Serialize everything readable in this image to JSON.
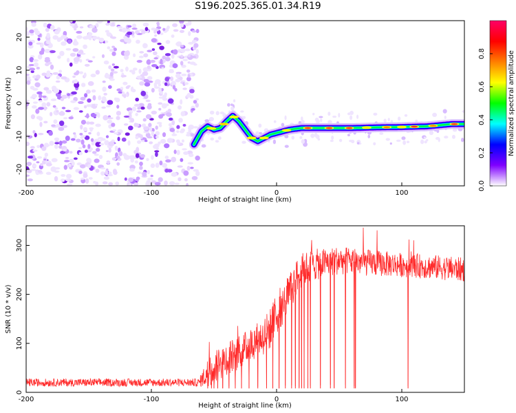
{
  "title": "S196.2025.365.01.34.R19",
  "chart_data": [
    {
      "type": "heatmap",
      "name": "spectrogram",
      "xlabel": "Height of straight line (km)",
      "ylabel": "Frequency (Hz)",
      "xlim": [
        -200,
        150
      ],
      "ylim": [
        -25,
        25
      ],
      "xticks": [
        -200,
        -100,
        0,
        100
      ],
      "xtick_labels": [
        "-200",
        "-100",
        "0",
        "100"
      ],
      "yticks": [
        20,
        10,
        0,
        -10,
        -20
      ],
      "ytick_labels": [
        "20",
        "10",
        "0",
        "-10",
        "-20"
      ],
      "noise_region_x": [
        -200,
        -63
      ],
      "ridge": {
        "x": [
          -66,
          -60,
          -55,
          -50,
          -45,
          -40,
          -35,
          -30,
          -25,
          -20,
          -15,
          -10,
          -5,
          0,
          5,
          10,
          20,
          40,
          60,
          80,
          100,
          120,
          140,
          150
        ],
        "y": [
          -12.5,
          -8.5,
          -7,
          -8,
          -7.5,
          -5.5,
          -3.8,
          -5.5,
          -8,
          -10.5,
          -11.5,
          -10.5,
          -9.5,
          -9,
          -8.5,
          -8,
          -7.5,
          -7.5,
          -7.5,
          -7.3,
          -7.2,
          -7,
          -6.3,
          -6.3
        ]
      },
      "colorbar": {
        "label": "Normalized spectral amplitude",
        "range": [
          0,
          1
        ],
        "ticks": [
          0.0,
          0.2,
          0.4,
          0.6,
          0.8
        ],
        "tick_labels": [
          "0.0",
          "0.2",
          "0.4",
          "0.6",
          "0.8"
        ],
        "colors": [
          "#ffffff",
          "#7f00ff",
          "#0000ff",
          "#00ffff",
          "#00ff00",
          "#ffff00",
          "#ff7f00",
          "#ff0000",
          "#ff0066"
        ]
      }
    },
    {
      "type": "line",
      "name": "snr",
      "xlabel": "Height of straight line (km)",
      "ylabel": "SNR (10 * v/v)",
      "xlim": [
        -200,
        150
      ],
      "ylim": [
        0,
        340
      ],
      "xticks": [
        -200,
        -100,
        0,
        100
      ],
      "xtick_labels": [
        "-200",
        "-100",
        "0",
        "100"
      ],
      "yticks": [
        0,
        100,
        200,
        300
      ],
      "ytick_labels": [
        "0",
        "100",
        "200",
        "300"
      ],
      "color": "#ff2a2a",
      "envelope": {
        "x": [
          -200,
          -62,
          -55,
          -50,
          -45,
          -40,
          -30,
          -20,
          -10,
          -5,
          0,
          5,
          10,
          15,
          20,
          30,
          40,
          50,
          70,
          100,
          130,
          150
        ],
        "y": [
          20,
          20,
          40,
          50,
          60,
          70,
          80,
          100,
          115,
          130,
          160,
          180,
          200,
          230,
          250,
          260,
          265,
          270,
          265,
          260,
          255,
          250
        ]
      },
      "spread": {
        "x": [
          -200,
          -62,
          -55,
          -40,
          -20,
          0,
          20,
          40,
          100,
          150
        ],
        "y": [
          8,
          8,
          30,
          35,
          35,
          45,
          35,
          30,
          25,
          25
        ]
      },
      "dropouts": [
        -55,
        -52,
        -50,
        -47,
        -43,
        -38,
        -33,
        -28,
        -22,
        -15,
        -8,
        -3,
        2,
        7,
        12,
        15,
        18,
        20,
        22,
        25,
        27,
        35,
        43,
        46,
        55,
        62,
        63,
        105
      ]
    }
  ]
}
